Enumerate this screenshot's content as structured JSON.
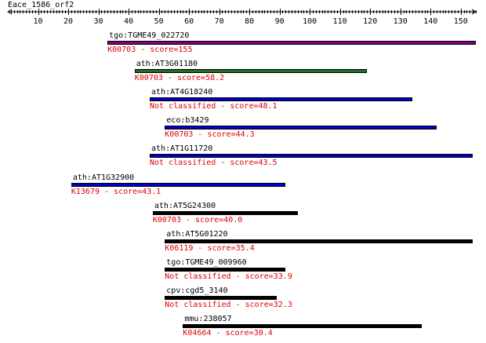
{
  "title": "Eace_1586_orf2",
  "axis": {
    "min": 0,
    "max": 155,
    "ticks": [
      10,
      20,
      30,
      40,
      50,
      60,
      70,
      80,
      90,
      100,
      110,
      120,
      130,
      140,
      150
    ]
  },
  "hits": [
    {
      "name": "tgo:TGME49_022720",
      "desc": "K00703 - score=155",
      "start": 33,
      "end": 155,
      "color": "#800080"
    },
    {
      "name": "ath:AT3G01180",
      "desc": "K00703 - score=58.2",
      "start": 42,
      "end": 119,
      "color": "#1f6e1f"
    },
    {
      "name": "ath:AT4G18240",
      "desc": "Not classified - score=48.1",
      "start": 47,
      "end": 134,
      "color": "#0000cc"
    },
    {
      "name": "eco:b3429",
      "desc": "K00703 - score=44.3",
      "start": 52,
      "end": 142,
      "color": "#0000cc"
    },
    {
      "name": "ath:AT1G11720",
      "desc": "Not classified - score=43.5",
      "start": 47,
      "end": 154,
      "color": "#0000cc"
    },
    {
      "name": "ath:AT1G32900",
      "desc": "K13679 - score=43.1",
      "start": 21,
      "end": 92,
      "color": "#0000cc"
    },
    {
      "name": "ath:AT5G24300",
      "desc": "K00703 - score=40.0",
      "start": 48,
      "end": 96,
      "color": "#000000"
    },
    {
      "name": "ath:AT5G01220",
      "desc": "K06119 - score=35.4",
      "start": 52,
      "end": 154,
      "color": "#000000"
    },
    {
      "name": "tgo:TGME49_009960",
      "desc": "Not classified - score=33.9",
      "start": 52,
      "end": 92,
      "color": "#000000"
    },
    {
      "name": "cpv:cgd5_3140",
      "desc": "Not classified - score=32.3",
      "start": 52,
      "end": 89,
      "color": "#000000"
    },
    {
      "name": "mmu:238057",
      "desc": "K04664 - score=30.4",
      "start": 58,
      "end": 137,
      "color": "#000000"
    }
  ]
}
